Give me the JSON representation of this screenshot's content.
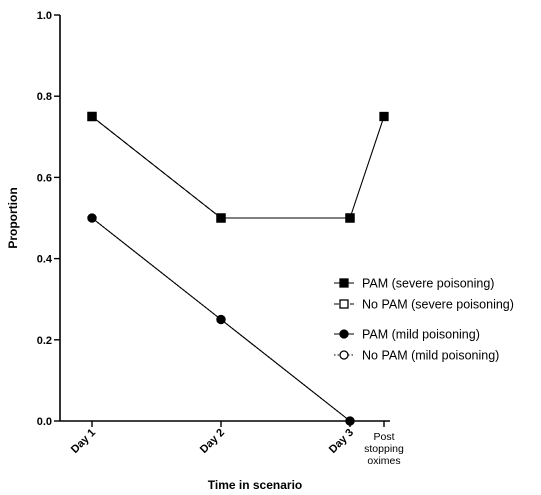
{
  "chart_data": {
    "type": "line",
    "title": "",
    "xlabel": "Time in scenario",
    "ylabel": "Proportion",
    "categories": [
      "Day 1",
      "Day 2",
      "Day 3",
      "Post stopping oximes"
    ],
    "ylim": [
      0,
      1.0
    ],
    "yticks": [
      "0.0",
      "0.2",
      "0.4",
      "0.6",
      "0.8",
      "1.0"
    ],
    "grid": false,
    "legend_position": "right",
    "series": [
      {
        "name": "PAM (severe poisoning)",
        "values": [
          0.75,
          0.5,
          0.5,
          0.75
        ],
        "marker": "square-filled",
        "line": "solid"
      },
      {
        "name": "No PAM (severe poisoning)",
        "values": [
          0.75,
          0.5,
          0.5,
          null
        ],
        "marker": "square-open",
        "line": "dashed"
      },
      {
        "name": "PAM (mild poisoning)",
        "values": [
          0.5,
          0.25,
          0.0,
          null
        ],
        "marker": "circle-filled",
        "line": "solid"
      },
      {
        "name": "No PAM (mild poisoning)",
        "values": [
          0.5,
          0.25,
          0.0,
          null
        ],
        "marker": "circle-open",
        "line": "dotted"
      }
    ],
    "colors": {
      "line": "#000000",
      "axis": "#000000"
    }
  }
}
